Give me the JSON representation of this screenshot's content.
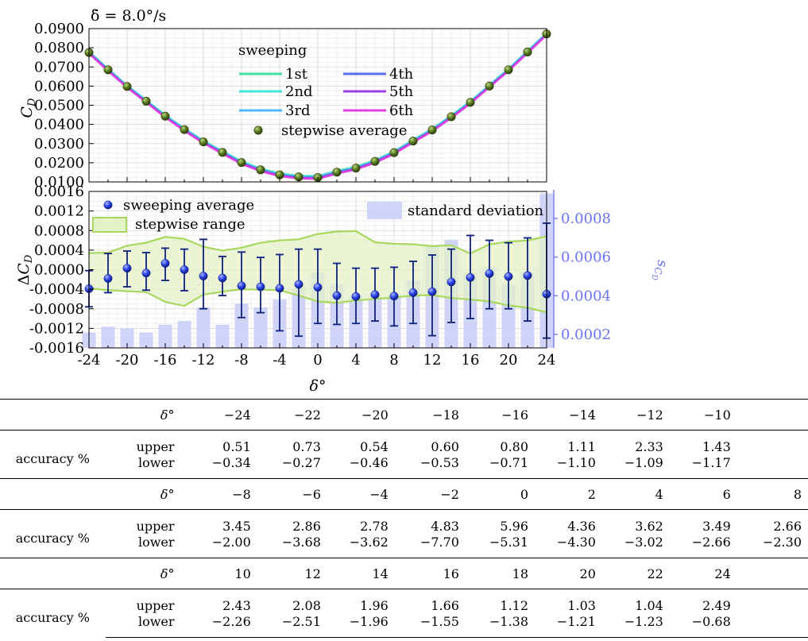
{
  "chart_data": [
    {
      "type": "line",
      "title": "δ̇ = 8.0°/s",
      "ylabel": "C_D",
      "xlim": [
        -24,
        24
      ],
      "ylim": [
        0.01,
        0.09
      ],
      "yticks": [
        "0.0100",
        "0.0200",
        "0.0300",
        "0.0400",
        "0.0500",
        "0.0600",
        "0.0700",
        "0.0800",
        "0.0900"
      ],
      "grid": true,
      "legend": {
        "title": "sweeping",
        "position": "top-center",
        "entries": [
          "1st",
          "2nd",
          "3rd",
          "4th",
          "5th",
          "6th",
          "stepwise average"
        ]
      },
      "series_colors": [
        "#40e0a0",
        "#40e8d8",
        "#50b8ff",
        "#5a6ee8",
        "#9a40e0",
        "#e040e0"
      ],
      "stepwise_color": "#4a6a1e",
      "x": [
        -24,
        -22,
        -20,
        -18,
        -16,
        -14,
        -12,
        -10,
        -8,
        -6,
        -4,
        -2,
        0,
        2,
        4,
        6,
        8,
        10,
        12,
        14,
        16,
        18,
        20,
        22,
        24
      ],
      "stepwise_average": [
        0.0775,
        0.0685,
        0.0598,
        0.0521,
        0.0443,
        0.0373,
        0.0309,
        0.0254,
        0.0201,
        0.0163,
        0.0137,
        0.0126,
        0.0123,
        0.0151,
        0.0172,
        0.0207,
        0.0253,
        0.0313,
        0.0371,
        0.044,
        0.0515,
        0.06,
        0.0685,
        0.0778,
        0.0872
      ]
    },
    {
      "type": "bar",
      "xlabel": "δ°",
      "ylabel": "ΔC_D",
      "y2label": "s_{C_D}",
      "xlim": [
        -24,
        24
      ],
      "ylim": [
        -0.0016,
        0.0016
      ],
      "y2lim": [
        0.00013,
        0.00094
      ],
      "xticks": [
        "-24",
        "-20",
        "-16",
        "-12",
        "-8",
        "-4",
        "0",
        "4",
        "8",
        "12",
        "16",
        "20",
        "24"
      ],
      "yticks": [
        "-0.0016",
        "-0.0012",
        "-0.0008",
        "-0.0004",
        "0.0000",
        "0.0004",
        "0.0008",
        "0.0012",
        "0.0016"
      ],
      "y2ticks": [
        "0.0002",
        "0.0004",
        "0.0006",
        "0.0008"
      ],
      "grid": true,
      "legend": {
        "entries": [
          "sweeping average",
          "stepwise range",
          "standard deviation"
        ],
        "position": "top"
      },
      "x": [
        -24,
        -22,
        -20,
        -18,
        -16,
        -14,
        -12,
        -10,
        -8,
        -6,
        -4,
        -2,
        0,
        2,
        4,
        6,
        8,
        10,
        12,
        14,
        16,
        18,
        20,
        22,
        24
      ],
      "sweeping_average": [
        -0.00039,
        -0.00018,
        3e-05,
        -7e-05,
        0.00013,
        0.0,
        -0.00013,
        -0.00017,
        -0.00033,
        -0.00035,
        -0.00038,
        -0.0003,
        -0.00036,
        -0.00053,
        -0.00055,
        -0.00051,
        -0.00054,
        -0.00047,
        -0.00045,
        -0.00025,
        -0.00016,
        -8e-05,
        -0.00014,
        -0.00012,
        -0.0005
      ],
      "error_low": [
        -0.00076,
        -0.00047,
        -0.00035,
        -0.00042,
        -0.00022,
        -0.00043,
        -0.0008,
        -0.00053,
        -0.00098,
        -0.00088,
        -0.00125,
        -0.00136,
        -0.0011,
        -0.00112,
        -0.0011,
        -0.00105,
        -0.00115,
        -0.0011,
        -0.00135,
        -0.00108,
        -0.001,
        -0.0008,
        -0.0008,
        -0.00105,
        -0.0014
      ],
      "error_high": [
        -2e-05,
        0.00033,
        0.00038,
        0.00035,
        0.00044,
        0.00042,
        0.00062,
        0.00027,
        0.00036,
        0.00025,
        0.00031,
        0.00042,
        0.00042,
        0.00013,
        3e-05,
        3e-05,
        5e-05,
        0.00017,
        0.0003,
        0.00042,
        0.0007,
        0.0006,
        0.00055,
        0.00065,
        0.00095
      ],
      "range_upper": [
        0.00034,
        0.00035,
        0.00049,
        0.00055,
        0.00067,
        0.00063,
        0.00047,
        0.00039,
        0.00045,
        0.00055,
        0.0006,
        0.00062,
        0.00073,
        0.00078,
        0.00079,
        0.00056,
        0.00053,
        0.00052,
        0.00048,
        0.0005,
        0.00033,
        0.00052,
        0.00057,
        0.0006,
        0.00068
      ],
      "range_lower": [
        -0.00038,
        -0.00042,
        -0.00044,
        -0.00046,
        -0.00066,
        -0.00074,
        -0.00051,
        -0.00045,
        -0.0004,
        -0.00041,
        -0.00042,
        -0.00053,
        -0.00065,
        -0.00068,
        -0.00063,
        -0.0006,
        -0.00057,
        -0.00053,
        -0.00052,
        -0.00058,
        -0.00061,
        -0.00065,
        -0.00073,
        -0.00078,
        -0.00087
      ],
      "standard_deviation": [
        0.00021,
        0.00024,
        0.00023,
        0.00021,
        0.00025,
        0.00027,
        0.00034,
        0.00025,
        0.00036,
        0.00034,
        0.00038,
        0.00044,
        0.00052,
        0.00046,
        0.0004,
        0.0004,
        0.0004,
        0.00048,
        0.00066,
        0.00069,
        0.00052,
        0.00055,
        0.00046,
        0.00052,
        0.00093
      ],
      "colors": {
        "points": "#2a40e8",
        "errorbars": "#10207a",
        "range_fill": "#e4f2c8",
        "range_line": "#a8d860",
        "bars": "#c8ccf8",
        "y2axis": "#6a74f0"
      }
    }
  ],
  "table": {
    "header_label": "δ°",
    "row_label": "accuracy %",
    "upper_label": "upper",
    "lower_label": "lower",
    "blocks": [
      {
        "angles": [
          "−24",
          "−22",
          "−20",
          "−18",
          "−16",
          "−14",
          "−12",
          "−10",
          ""
        ],
        "upper": [
          "0.51",
          "0.73",
          "0.54",
          "0.60",
          "0.80",
          "1.11",
          "2.33",
          "1.43",
          ""
        ],
        "lower": [
          "−0.34",
          "−0.27",
          "−0.46",
          "−0.53",
          "−0.71",
          "−1.10",
          "−1.09",
          "−1.17",
          ""
        ]
      },
      {
        "angles": [
          "−8",
          "−6",
          "−4",
          "−2",
          "0",
          "2",
          "4",
          "6",
          "8"
        ],
        "upper": [
          "3.45",
          "2.86",
          "2.78",
          "4.83",
          "5.96",
          "4.36",
          "3.62",
          "3.49",
          "2.66"
        ],
        "lower": [
          "−2.00",
          "−3.68",
          "−3.62",
          "−7.70",
          "−5.31",
          "−4.30",
          "−3.02",
          "−2.66",
          "−2.30"
        ]
      },
      {
        "angles": [
          "10",
          "12",
          "14",
          "16",
          "18",
          "20",
          "22",
          "24",
          ""
        ],
        "upper": [
          "2.43",
          "2.08",
          "1.96",
          "1.66",
          "1.12",
          "1.03",
          "1.04",
          "2.49",
          ""
        ],
        "lower": [
          "−2.26",
          "−2.51",
          "−1.96",
          "−1.55",
          "−1.38",
          "−1.21",
          "−1.23",
          "−0.68",
          ""
        ]
      }
    ]
  }
}
